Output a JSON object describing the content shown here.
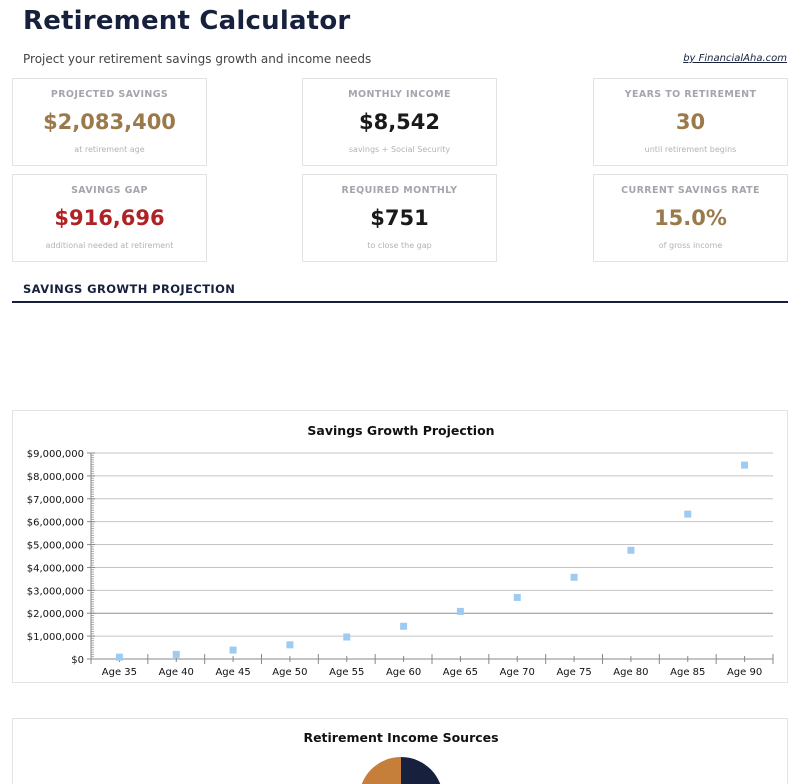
{
  "header": {
    "title": "Retirement Calculator",
    "subtitle": "Project your retirement savings growth and income needs",
    "byline": "by FinancialAha.com"
  },
  "cards": [
    {
      "label": "PROJECTED SAVINGS",
      "value": "$2,083,400",
      "sub": "at retirement age",
      "color": "#9a7a4a"
    },
    {
      "label": "MONTHLY INCOME",
      "value": "$8,542",
      "sub": "savings + Social Security",
      "color": "#1a1a1a"
    },
    {
      "label": "YEARS TO RETIREMENT",
      "value": "30",
      "sub": "until retirement begins",
      "color": "#9a7a4a"
    },
    {
      "label": "SAVINGS GAP",
      "value": "$916,696",
      "sub": "additional needed at retirement",
      "color": "#b02325"
    },
    {
      "label": "REQUIRED MONTHLY",
      "value": "$751",
      "sub": "to close the gap",
      "color": "#1a1a1a"
    },
    {
      "label": "CURRENT SAVINGS RATE",
      "value": "15.0%",
      "sub": "of gross income",
      "color": "#9a7a4a"
    }
  ],
  "section": {
    "title": "SAVINGS GROWTH PROJECTION"
  },
  "chart_data": [
    {
      "type": "scatter",
      "title": "Savings Growth Projection",
      "xlabel": "",
      "ylabel": "",
      "categories": [
        "Age 35",
        "Age 40",
        "Age 45",
        "Age 50",
        "Age 55",
        "Age 60",
        "Age 65",
        "Age 70",
        "Age 75",
        "Age 80",
        "Age 85",
        "Age 90"
      ],
      "values": [
        80000,
        200000,
        390000,
        620000,
        960000,
        1430000,
        2080000,
        2690000,
        3570000,
        4750000,
        6330000,
        8470000
      ],
      "y_ticks": [
        "$0",
        "$1,000,000",
        "$2,000,000",
        "$3,000,000",
        "$4,000,000",
        "$5,000,000",
        "$6,000,000",
        "$7,000,000",
        "$8,000,000",
        "$9,000,000"
      ],
      "ylim": [
        0,
        9000000
      ],
      "grid": true,
      "marker_color": "#9ecbf2"
    },
    {
      "type": "pie",
      "title": "Retirement Income Sources",
      "colors": [
        "#17213d",
        "#c57f3b"
      ]
    }
  ]
}
